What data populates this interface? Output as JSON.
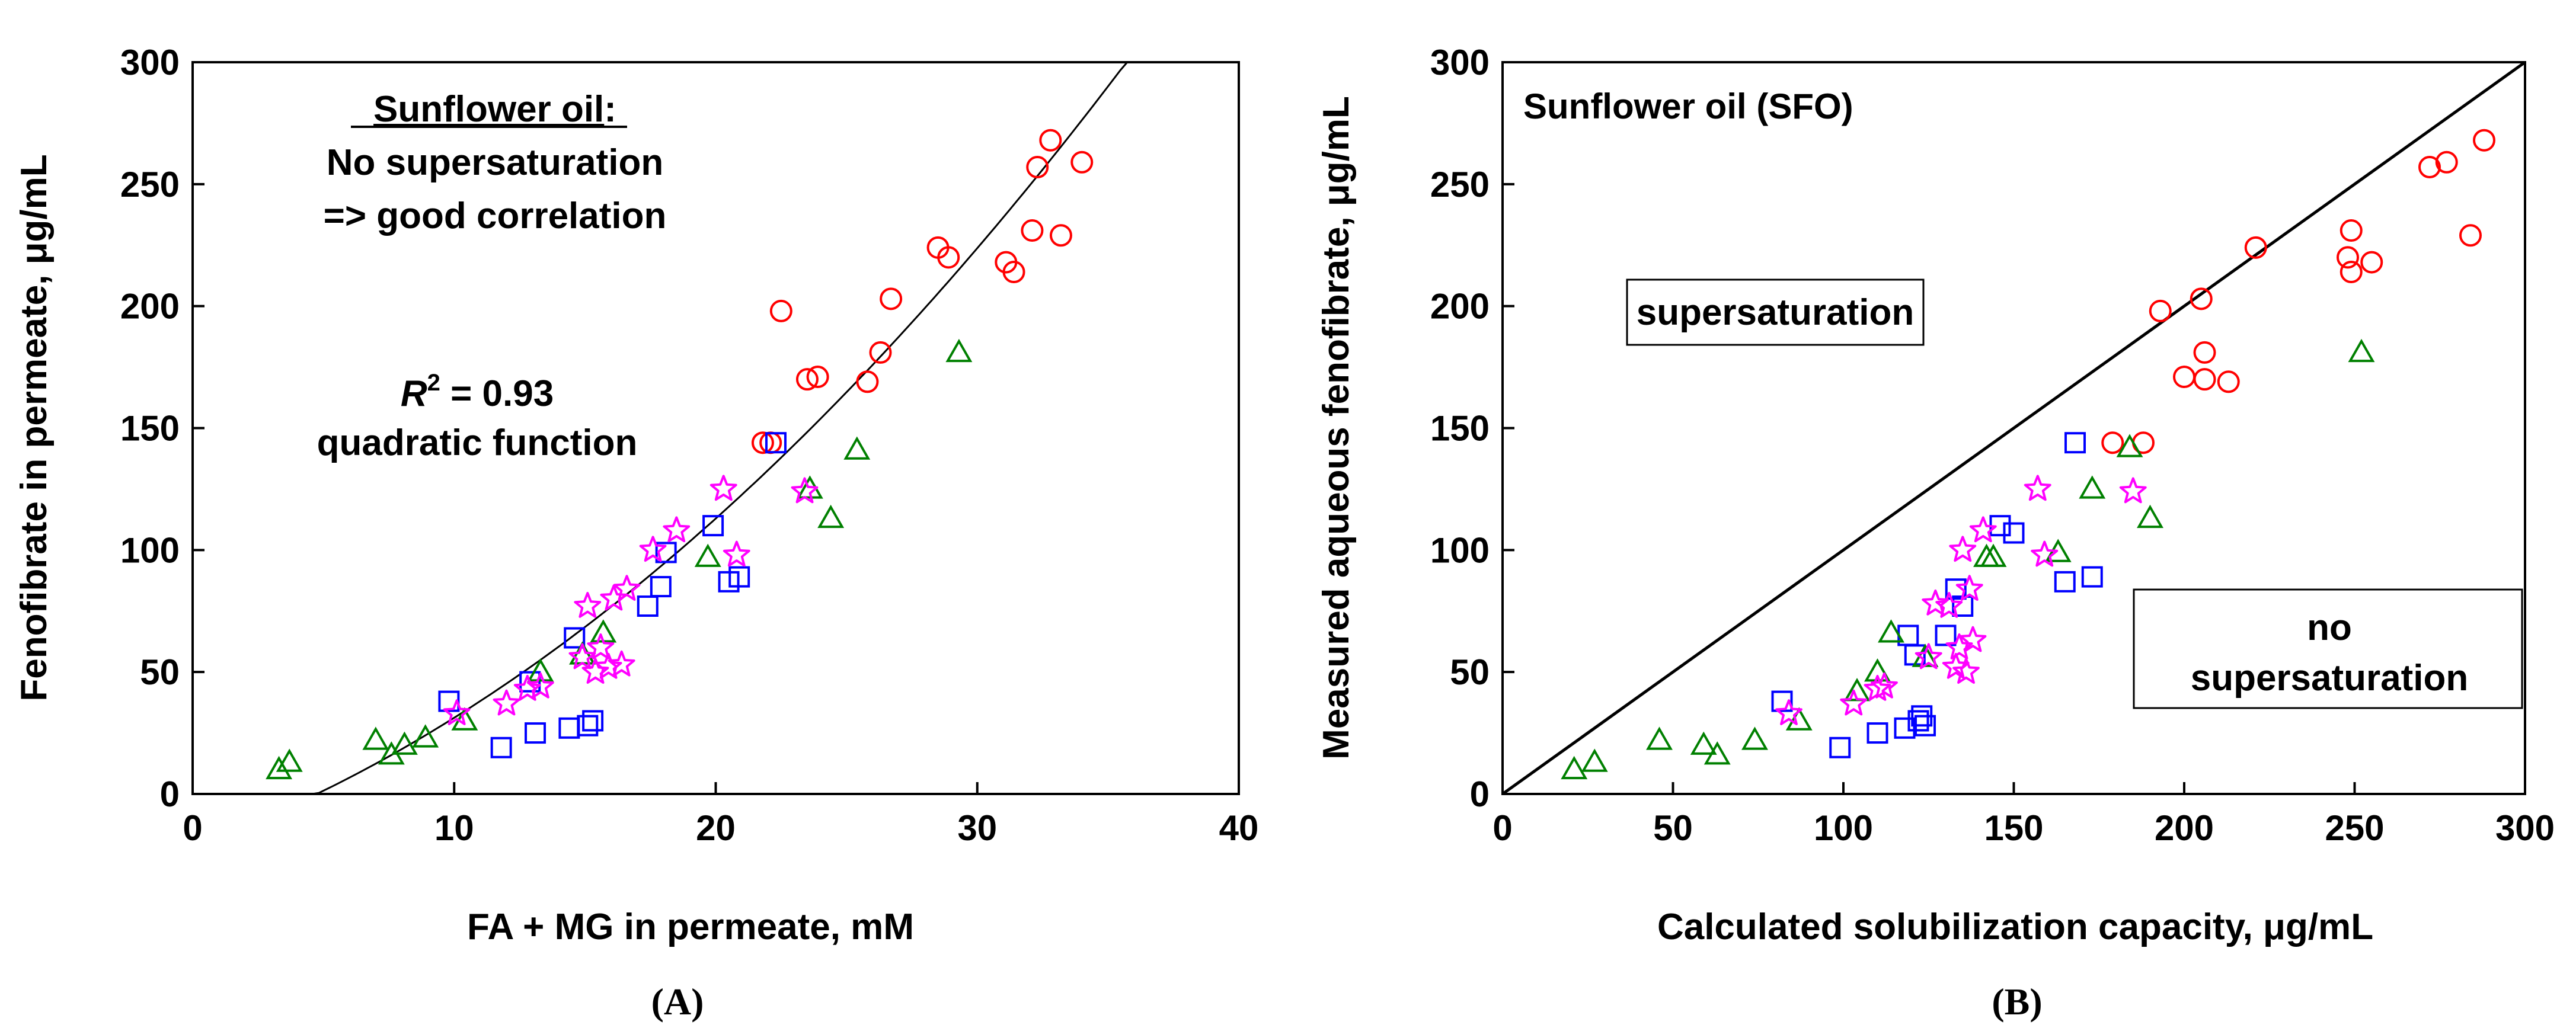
{
  "chart_data": [
    {
      "panel_label": "(A)",
      "type": "scatter",
      "xlabel": "FA + MG in permeate, mM",
      "ylabel": "Fenofibrate in permeate, μg/mL",
      "xlim": [
        0,
        40
      ],
      "ylim": [
        0,
        300
      ],
      "xticks": [
        0,
        10,
        20,
        30,
        40
      ],
      "yticks": [
        0,
        50,
        100,
        150,
        200,
        250,
        300
      ],
      "grid": false,
      "annotations": {
        "oil_title": "Sunflower oil",
        "oil_title_colon": ":",
        "line2": "No supersaturation",
        "line3": "=> good correlation",
        "r2_label": "R",
        "r2_sup": "2",
        "r2_value": " = 0.93",
        "fit_label": "quadratic function"
      },
      "fit": {
        "type": "quadratic",
        "points": [
          [
            4.3,
            0
          ],
          [
            10,
            32
          ],
          [
            15,
            62
          ],
          [
            20,
            109
          ],
          [
            25,
            172
          ],
          [
            30,
            228
          ],
          [
            36,
            300
          ]
        ]
      },
      "series": [
        {
          "marker": "circle",
          "color": "#ff0000",
          "points": [
            [
              21.8,
              144
            ],
            [
              22.1,
              144
            ],
            [
              22.5,
              198
            ],
            [
              23.5,
              170
            ],
            [
              23.9,
              171
            ],
            [
              25.8,
              169
            ],
            [
              26.3,
              181
            ],
            [
              26.7,
              203
            ],
            [
              28.5,
              224
            ],
            [
              28.9,
              220
            ],
            [
              31.1,
              218
            ],
            [
              31.4,
              214
            ],
            [
              32.1,
              231
            ],
            [
              32.3,
              257
            ],
            [
              32.8,
              268
            ],
            [
              33.2,
              229
            ],
            [
              34.0,
              259
            ]
          ]
        },
        {
          "marker": "square",
          "color": "#0000ff",
          "points": [
            [
              9.8,
              38
            ],
            [
              11.8,
              19
            ],
            [
              12.9,
              46
            ],
            [
              13.1,
              25
            ],
            [
              14.4,
              27
            ],
            [
              14.6,
              64
            ],
            [
              15.1,
              28
            ],
            [
              15.3,
              30
            ],
            [
              17.4,
              77
            ],
            [
              17.9,
              85
            ],
            [
              18.1,
              99
            ],
            [
              19.9,
              110
            ],
            [
              20.5,
              87
            ],
            [
              20.9,
              89
            ],
            [
              22.3,
              144
            ]
          ]
        },
        {
          "marker": "triangle",
          "color": "#008000",
          "points": [
            [
              3.3,
              10
            ],
            [
              3.7,
              13
            ],
            [
              7.0,
              22
            ],
            [
              7.6,
              16
            ],
            [
              8.1,
              20
            ],
            [
              8.9,
              23
            ],
            [
              10.4,
              30
            ],
            [
              13.3,
              50
            ],
            [
              14.9,
              57
            ],
            [
              15.7,
              66
            ],
            [
              19.7,
              97
            ],
            [
              23.6,
              125
            ],
            [
              24.4,
              113
            ],
            [
              25.4,
              141
            ],
            [
              29.3,
              181
            ]
          ]
        },
        {
          "marker": "star",
          "color": "#ff00ff",
          "points": [
            [
              10.1,
              33
            ],
            [
              12.0,
              37
            ],
            [
              12.8,
              43
            ],
            [
              13.3,
              44
            ],
            [
              14.9,
              56
            ],
            [
              15.1,
              77
            ],
            [
              15.4,
              50
            ],
            [
              15.6,
              60
            ],
            [
              15.9,
              52
            ],
            [
              16.1,
              80
            ],
            [
              16.4,
              53
            ],
            [
              16.6,
              84
            ],
            [
              17.6,
              100
            ],
            [
              18.5,
              108
            ],
            [
              20.3,
              125
            ],
            [
              20.8,
              98
            ],
            [
              23.4,
              124
            ]
          ]
        }
      ]
    },
    {
      "panel_label": "(B)",
      "type": "scatter",
      "xlabel": "Calculated solubilization capacity, μg/mL",
      "ylabel": "Measured aqueous fenofibrate, μg/mL",
      "xlim": [
        0,
        300
      ],
      "ylim": [
        0,
        300
      ],
      "xticks": [
        0,
        50,
        100,
        150,
        200,
        250,
        300
      ],
      "yticks": [
        0,
        50,
        100,
        150,
        200,
        250,
        300
      ],
      "grid": false,
      "annotations": {
        "title": "Sunflower oil (SFO)",
        "box1": "supersaturation",
        "box2_line1": "no",
        "box2_line2": "supersaturation"
      },
      "reference_line": [
        [
          0,
          0
        ],
        [
          300,
          300
        ]
      ],
      "series": [
        {
          "marker": "circle",
          "color": "#ff0000",
          "points": [
            [
              179,
              144
            ],
            [
              188,
              144
            ],
            [
              193,
              198
            ],
            [
              200,
              171
            ],
            [
              205,
              203
            ],
            [
              206,
              181
            ],
            [
              206,
              170
            ],
            [
              213,
              169
            ],
            [
              221,
              224
            ],
            [
              248,
              220
            ],
            [
              249,
              231
            ],
            [
              249,
              214
            ],
            [
              255,
              218
            ],
            [
              272,
              257
            ],
            [
              277,
              259
            ],
            [
              284,
              229
            ],
            [
              288,
              268
            ]
          ]
        },
        {
          "marker": "square",
          "color": "#0000ff",
          "points": [
            [
              82,
              38
            ],
            [
              99,
              19
            ],
            [
              110,
              25
            ],
            [
              118,
              27
            ],
            [
              119,
              65
            ],
            [
              121,
              57
            ],
            [
              122,
              30
            ],
            [
              123,
              32
            ],
            [
              124,
              28
            ],
            [
              130,
              65
            ],
            [
              133,
              84
            ],
            [
              135,
              77
            ],
            [
              146,
              110
            ],
            [
              150,
              107
            ],
            [
              165,
              87
            ],
            [
              168,
              144
            ],
            [
              173,
              89
            ]
          ]
        },
        {
          "marker": "triangle",
          "color": "#008000",
          "points": [
            [
              21,
              10
            ],
            [
              27,
              13
            ],
            [
              46,
              22
            ],
            [
              59,
              20
            ],
            [
              63,
              16
            ],
            [
              74,
              22
            ],
            [
              87,
              30
            ],
            [
              104,
              42
            ],
            [
              110,
              50
            ],
            [
              114,
              66
            ],
            [
              124,
              56
            ],
            [
              142,
              97
            ],
            [
              144,
              97
            ],
            [
              163,
              99
            ],
            [
              173,
              125
            ],
            [
              184,
              142
            ],
            [
              190,
              113
            ],
            [
              252,
              181
            ]
          ]
        },
        {
          "marker": "star",
          "color": "#ff00ff",
          "points": [
            [
              84,
              33
            ],
            [
              103,
              37
            ],
            [
              110,
              43
            ],
            [
              112,
              44
            ],
            [
              125,
              56
            ],
            [
              127,
              78
            ],
            [
              131,
              77
            ],
            [
              133,
              52
            ],
            [
              134,
              60
            ],
            [
              135,
              100
            ],
            [
              136,
              50
            ],
            [
              137,
              84
            ],
            [
              138,
              63
            ],
            [
              141,
              108
            ],
            [
              157,
              125
            ],
            [
              159,
              98
            ],
            [
              185,
              124
            ]
          ]
        }
      ]
    }
  ]
}
